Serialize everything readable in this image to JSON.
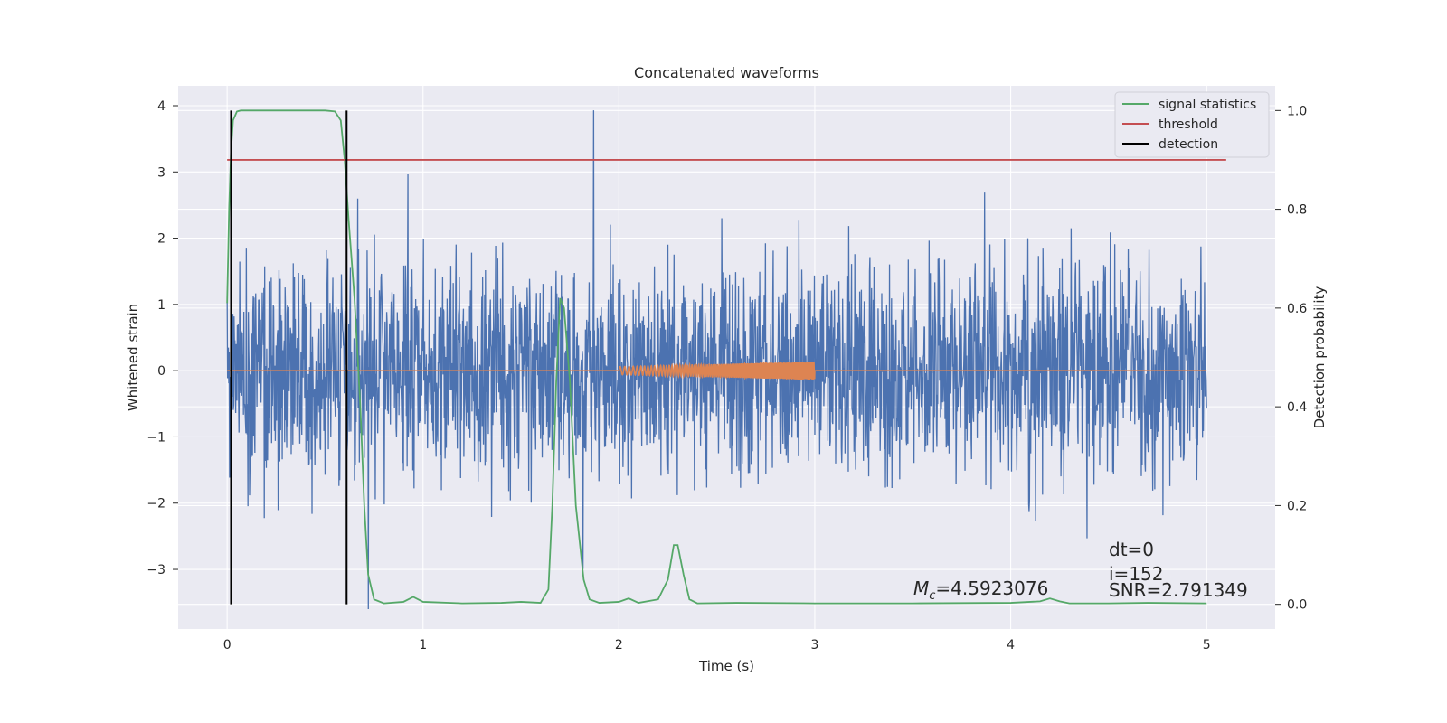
{
  "chart_data": {
    "type": "line",
    "title": "Concatenated waveforms",
    "xlabel": "Time (s)",
    "ylabel": "Whitened strain",
    "y2label": "Detection probability",
    "xlim": [
      -0.25,
      5.35
    ],
    "ylim": [
      -3.9,
      4.3
    ],
    "y2lim": [
      -0.05,
      1.05
    ],
    "xticks": [
      0,
      1,
      2,
      3,
      4,
      5
    ],
    "yticks": [
      -3,
      -2,
      -1,
      0,
      1,
      2,
      3,
      4
    ],
    "y2ticks": [
      0.0,
      0.2,
      0.4,
      0.6,
      0.8,
      1.0
    ],
    "ytick_labels": [
      "−3",
      "−2",
      "−1",
      "0",
      "1",
      "2",
      "3",
      "4"
    ],
    "y2tick_labels": [
      "0.0",
      "0.2",
      "0.4",
      "0.6",
      "0.8",
      "1.0"
    ],
    "grid": true,
    "legend_position": "top-right",
    "background": "#eaeaf2",
    "series": [
      {
        "key": "strain",
        "color": "#4c72b0",
        "axis": "left",
        "kind": "noise",
        "x_range": [
          0,
          5
        ],
        "samples": 2400,
        "typical_amplitude": 1.3,
        "max": 3.93,
        "min": -3.6
      },
      {
        "key": "template",
        "color": "#dd8452",
        "axis": "left",
        "kind": "chirp",
        "x_range": [
          0,
          5
        ],
        "chirp_range": [
          2.0,
          3.0
        ],
        "amplitude_start": 0.06,
        "amplitude_end": 0.14
      },
      {
        "key": "signal_statistics",
        "name": "signal statistics",
        "color": "#55a868",
        "axis": "right",
        "x": [
          0,
          0.01,
          0.02,
          0.03,
          0.05,
          0.07,
          0.1,
          0.3,
          0.5,
          0.55,
          0.58,
          0.6,
          0.62,
          0.65,
          0.68,
          0.7,
          0.72,
          0.75,
          0.8,
          0.9,
          0.95,
          1.0,
          1.2,
          1.4,
          1.5,
          1.6,
          1.64,
          1.66,
          1.68,
          1.7,
          1.72,
          1.75,
          1.78,
          1.82,
          1.85,
          1.9,
          2.0,
          2.05,
          2.1,
          2.2,
          2.25,
          2.28,
          2.3,
          2.33,
          2.36,
          2.4,
          2.6,
          3.0,
          3.5,
          4.0,
          4.15,
          4.2,
          4.25,
          4.3,
          4.5,
          4.7,
          5.0
        ],
        "values": [
          0.61,
          0.8,
          0.92,
          0.98,
          0.998,
          1.0,
          1.0,
          1.0,
          1.0,
          0.998,
          0.98,
          0.9,
          0.78,
          0.62,
          0.4,
          0.2,
          0.06,
          0.01,
          0.002,
          0.005,
          0.015,
          0.005,
          0.002,
          0.003,
          0.005,
          0.003,
          0.03,
          0.2,
          0.45,
          0.62,
          0.6,
          0.45,
          0.2,
          0.05,
          0.01,
          0.003,
          0.005,
          0.012,
          0.003,
          0.01,
          0.05,
          0.12,
          0.12,
          0.06,
          0.01,
          0.002,
          0.003,
          0.002,
          0.002,
          0.003,
          0.006,
          0.012,
          0.006,
          0.002,
          0.002,
          0.003,
          0.002
        ]
      },
      {
        "key": "threshold",
        "name": "threshold",
        "color": "#c44e52",
        "axis": "right",
        "x": [
          0,
          5.1
        ],
        "values": [
          0.9,
          0.9
        ]
      },
      {
        "key": "detection",
        "name": "detection",
        "color": "#000000",
        "axis": "right",
        "kind": "vlines",
        "x": [
          0.02,
          0.61
        ],
        "y_range": [
          0.0,
          1.0
        ]
      }
    ],
    "legend": [
      "signal statistics",
      "threshold",
      "detection"
    ],
    "annotations": {
      "mc": "=4.5923076",
      "mc_symbol": "M",
      "mc_subscript": "c",
      "dt": "dt=0",
      "i": "i=152",
      "snr": "SNR=2.791349"
    }
  }
}
